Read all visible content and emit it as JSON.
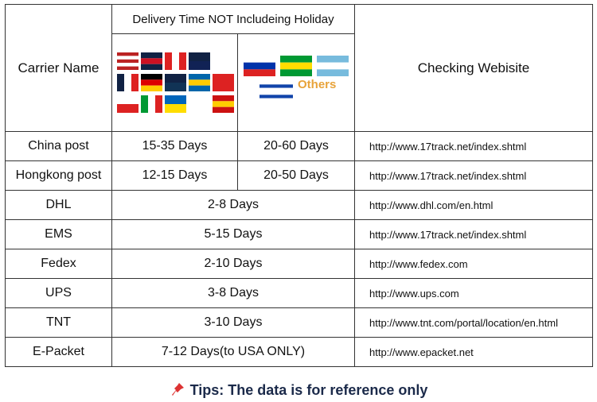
{
  "header": {
    "carrier": "Carrier Name",
    "delivery": "Delivery Time NOT Includeing Holiday",
    "others": "Others",
    "website": "Checking Webisite"
  },
  "table": {
    "rows": [
      [
        "China post",
        "15-35 Days",
        "20-60 Days",
        "http://www.17track.net/index.shtml"
      ],
      [
        "Hongkong post",
        "12-15 Days",
        "20-50 Days",
        "http://www.17track.net/index.shtml"
      ],
      [
        "DHL",
        "2-8 Days",
        "http://www.dhl.com/en.html"
      ],
      [
        "EMS",
        "5-15 Days",
        "http://www.17track.net/index.shtml"
      ],
      [
        "Fedex",
        "2-10 Days",
        "http://www.fedex.com"
      ],
      [
        "UPS",
        "3-8 Days",
        "http://www.ups.com"
      ],
      [
        "TNT",
        "3-10 Days",
        "http://www.tnt.com/portal/location/en.html"
      ],
      [
        "E-Packet",
        "7-12 Days(to USA ONLY)",
        "http://www.epacket.net"
      ]
    ]
  },
  "tips": "Tips: The data is for reference only"
}
